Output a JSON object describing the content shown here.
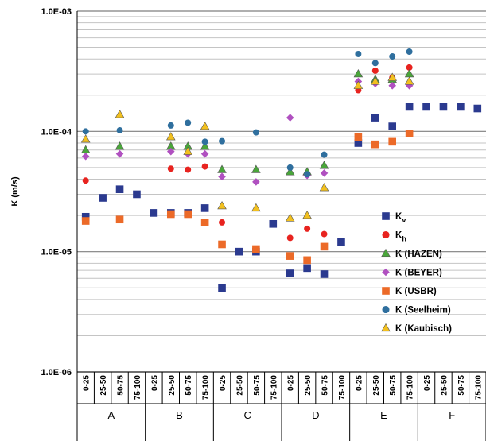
{
  "chart_data": {
    "type": "scatter",
    "ylabel": "K (m/s)",
    "yscale": "log",
    "ylim": [
      1e-06,
      0.001
    ],
    "ytick_labels": [
      "1.0E-06",
      "1.0E-05",
      "1.0E-04",
      "1.0E-03"
    ],
    "categories": [
      "0-25",
      "25-50",
      "50-75",
      "75-100",
      "0-25",
      "25-50",
      "50-75",
      "75-100",
      "0-25",
      "25-50",
      "50-75",
      "75-100",
      "0-25",
      "25-50",
      "50-75",
      "75-100",
      "0-25",
      "25-50",
      "50-75",
      "75-100",
      "0-25",
      "25-50",
      "50-75",
      "75-100"
    ],
    "groups": [
      "A",
      "B",
      "C",
      "D",
      "E",
      "F"
    ],
    "legend_position": "right",
    "series": [
      {
        "name": "Kv",
        "label_main": "K",
        "label_sub": "v",
        "marker": "square",
        "color": "#2b3a8f",
        "values": [
          1.95e-05,
          2.8e-05,
          3.3e-05,
          3e-05,
          2.1e-05,
          2.1e-05,
          2.1e-05,
          2.3e-05,
          5e-06,
          1e-05,
          1e-05,
          1.7e-05,
          6.6e-06,
          7.3e-06,
          6.5e-06,
          1.2e-05,
          8e-05,
          0.00013,
          0.00011,
          0.00016,
          0.00016,
          0.00016,
          0.00016,
          0.000155
        ]
      },
      {
        "name": "Kh",
        "label_main": "K",
        "label_sub": "h",
        "marker": "circle",
        "color": "#e8231f",
        "values": [
          3.9e-05,
          null,
          null,
          null,
          null,
          4.9e-05,
          4.8e-05,
          5.1e-05,
          1.75e-05,
          null,
          null,
          null,
          1.3e-05,
          1.55e-05,
          1.4e-05,
          null,
          0.00022,
          0.00032,
          0.00028,
          0.00034,
          null,
          null,
          null,
          null
        ]
      },
      {
        "name": "K (HAZEN)",
        "marker": "triangle",
        "color": "#4aa63a",
        "values": [
          7e-05,
          null,
          7.5e-05,
          null,
          null,
          7.5e-05,
          7.5e-05,
          7.5e-05,
          4.8e-05,
          null,
          4.8e-05,
          null,
          4.6e-05,
          4.6e-05,
          5.2e-05,
          null,
          0.0003,
          0.00027,
          0.00027,
          0.0003,
          null,
          null,
          null,
          null
        ]
      },
      {
        "name": "K (BEYER)",
        "marker": "diamond",
        "color": "#b050c0",
        "values": [
          6.2e-05,
          null,
          6.5e-05,
          null,
          null,
          6.8e-05,
          6.5e-05,
          6.5e-05,
          4.2e-05,
          null,
          3.8e-05,
          null,
          0.00013,
          4.3e-05,
          4.5e-05,
          null,
          0.00026,
          0.00025,
          0.00024,
          0.00024,
          null,
          null,
          null,
          null
        ]
      },
      {
        "name": "K (USBR)",
        "marker": "square",
        "color": "#ec6a28",
        "values": [
          1.8e-05,
          null,
          1.85e-05,
          null,
          null,
          2.05e-05,
          2.05e-05,
          1.75e-05,
          1.15e-05,
          null,
          1.05e-05,
          null,
          9.2e-06,
          8.5e-06,
          1.1e-05,
          null,
          9e-05,
          7.8e-05,
          8.2e-05,
          9.6e-05,
          null,
          null,
          null,
          null
        ]
      },
      {
        "name": "K (Seelheim)",
        "marker": "circle",
        "color": "#2f6f9e",
        "values": [
          0.0001,
          null,
          0.000102,
          null,
          null,
          0.000112,
          0.000118,
          8.2e-05,
          8.3e-05,
          null,
          9.8e-05,
          null,
          5e-05,
          4.4e-05,
          6.4e-05,
          null,
          0.00044,
          0.00037,
          0.00042,
          0.00046,
          null,
          null,
          null,
          null
        ]
      },
      {
        "name": "K (Kaubisch)",
        "marker": "triangle",
        "color": "#f2c01f",
        "values": [
          8.6e-05,
          null,
          0.000138,
          null,
          null,
          9e-05,
          6.8e-05,
          0.00011,
          2.4e-05,
          null,
          2.3e-05,
          null,
          1.9e-05,
          2e-05,
          3.4e-05,
          null,
          0.00024,
          0.00026,
          0.00028,
          0.00026,
          null,
          null,
          null,
          null
        ]
      }
    ]
  }
}
